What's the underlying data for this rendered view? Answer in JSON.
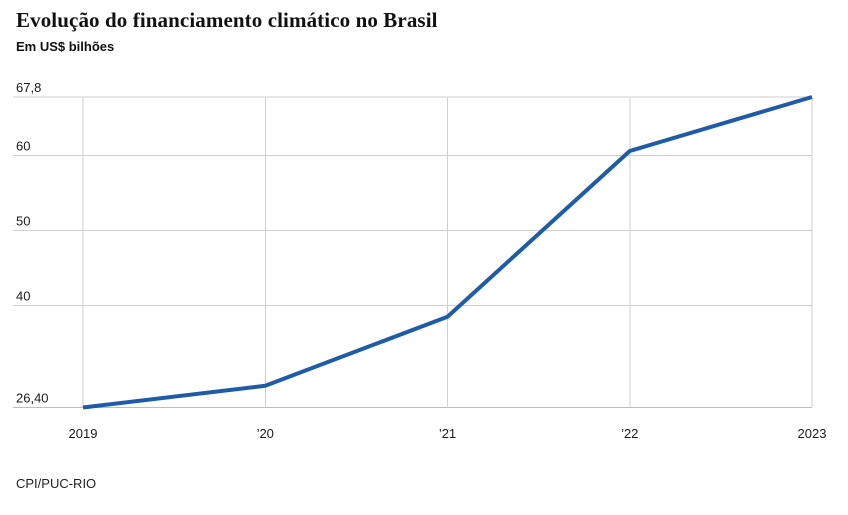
{
  "header": {
    "title": "Evolução do financiamento climático no Brasil",
    "subtitle": "Em US$ bilhões"
  },
  "footer": {
    "source": "CPI/PUC-RIO"
  },
  "colors": {
    "line": "#1e5ca8",
    "grid": "#cfcfcf",
    "axis": "#bdbdbd",
    "label": "#1a1a1a"
  },
  "chart_data": {
    "type": "line",
    "title": "Evolução do financiamento climático no Brasil",
    "ylabel": "Em US$ bilhões",
    "source": "CPI/PUC-RIO",
    "x": [
      2019,
      2020,
      2021,
      2022,
      2023
    ],
    "values": [
      26.4,
      29.3,
      38.5,
      60.6,
      67.8
    ],
    "x_tick_labels": [
      "2019",
      "’20",
      "’21",
      "’22",
      "2023"
    ],
    "y_ticks": [
      {
        "value": 67.8,
        "label": "67,8"
      },
      {
        "value": 60,
        "label": "60"
      },
      {
        "value": 50,
        "label": "50"
      },
      {
        "value": 40,
        "label": "40"
      },
      {
        "value": 26.4,
        "label": "26,40"
      }
    ],
    "ylim": [
      26.4,
      67.8
    ],
    "grid": true,
    "legend": "none"
  }
}
